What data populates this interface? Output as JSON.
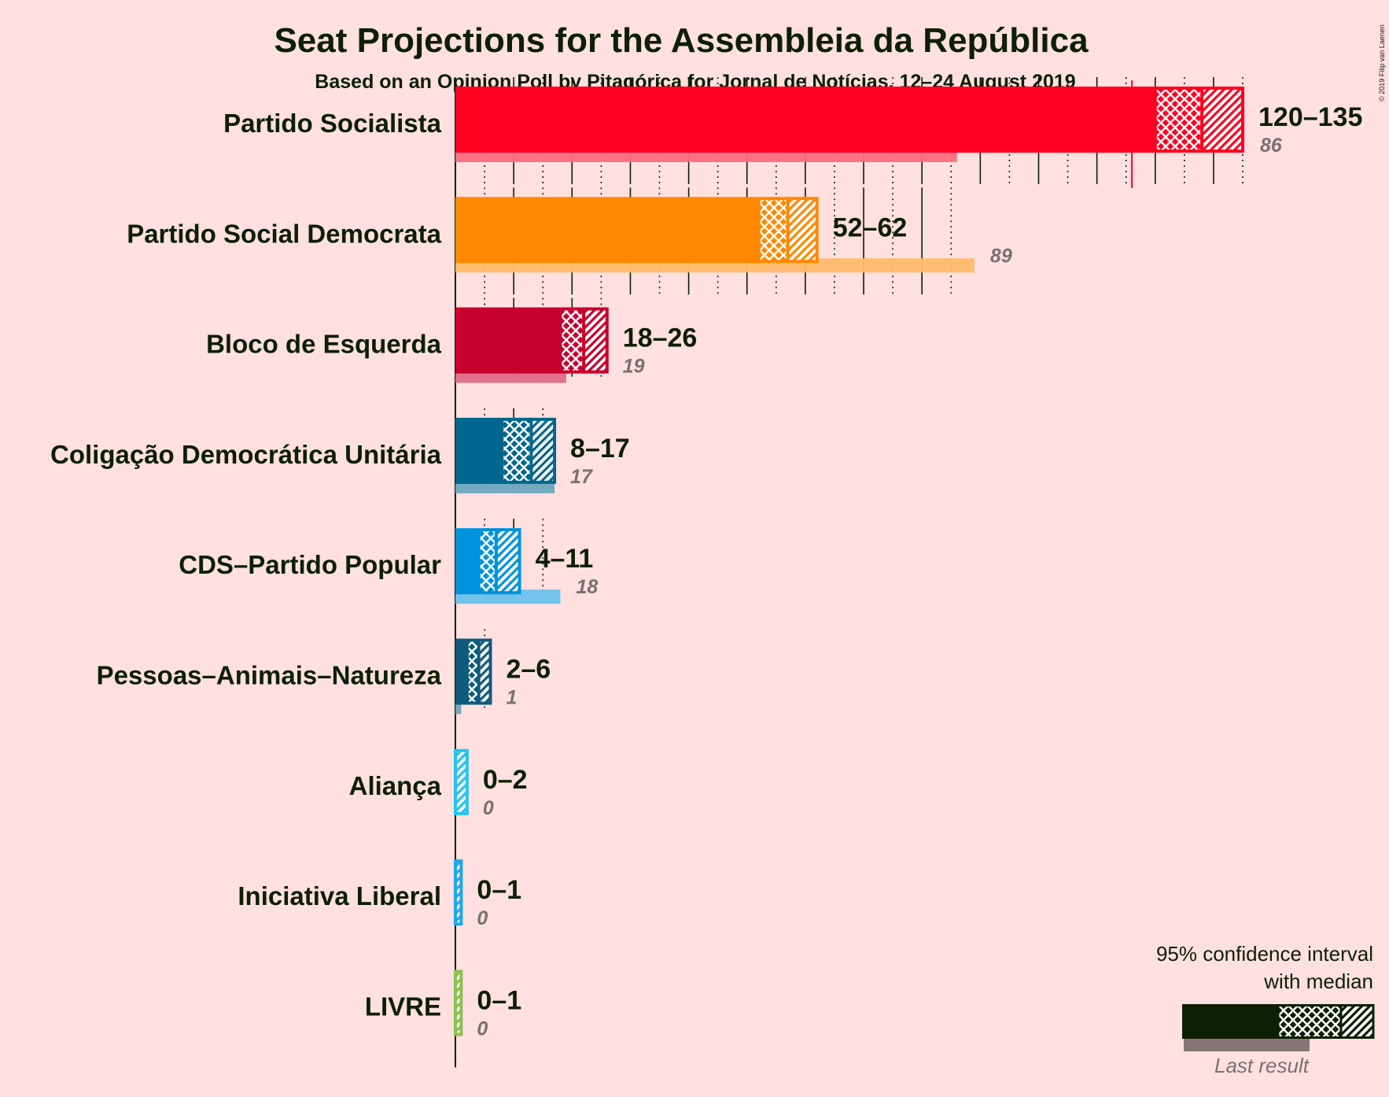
{
  "header": {
    "title": "Seat Projections for the Assembleia da República",
    "subtitle": "Based on an Opinion Poll by Pitagórica for Jornal de Notícias, 12–24 August 2019",
    "copyright": "© 2019 Filip van Laenen"
  },
  "legend": {
    "line1": "95% confidence interval",
    "line2": "with median",
    "last_result": "Last result"
  },
  "chart_data": {
    "type": "bar",
    "orientation": "horizontal",
    "majority_line": 116,
    "xlim": [
      0,
      135
    ],
    "grid": "vertical lines every 10 seats, dotted at odd multiples of 5",
    "series": [
      {
        "party": "Partido Socialista",
        "low": 120,
        "median": 128,
        "high": 135,
        "last": 86,
        "range_label": "120–135",
        "last_label": "86",
        "color": "#ff0020"
      },
      {
        "party": "Partido Social Democrata",
        "low": 52,
        "median": 57,
        "high": 62,
        "last": 89,
        "range_label": "52–62",
        "last_label": "89",
        "color": "#ff8800"
      },
      {
        "party": "Bloco de Esquerda",
        "low": 18,
        "median": 22,
        "high": 26,
        "last": 19,
        "range_label": "18–26",
        "last_label": "19",
        "color": "#c8002e"
      },
      {
        "party": "Coligação Democrática Unitária",
        "low": 8,
        "median": 13,
        "high": 17,
        "last": 17,
        "range_label": "8–17",
        "last_label": "17",
        "color": "#00678f"
      },
      {
        "party": "CDS–Partido Popular",
        "low": 4,
        "median": 7,
        "high": 11,
        "last": 18,
        "range_label": "4–11",
        "last_label": "18",
        "color": "#0093dd"
      },
      {
        "party": "Pessoas–Animais–Natureza",
        "low": 2,
        "median": 4,
        "high": 6,
        "last": 1,
        "range_label": "2–6",
        "last_label": "1",
        "color": "#0f5b7c"
      },
      {
        "party": "Aliança",
        "low": 0,
        "median": 0,
        "high": 2,
        "last": 0,
        "range_label": "0–2",
        "last_label": "0",
        "color": "#20c5f2"
      },
      {
        "party": "Iniciativa Liberal",
        "low": 0,
        "median": 0,
        "high": 1,
        "last": 0,
        "range_label": "0–1",
        "last_label": "0",
        "color": "#1ea9e8"
      },
      {
        "party": "LIVRE",
        "low": 0,
        "median": 0,
        "high": 1,
        "last": 0,
        "range_label": "0–1",
        "last_label": "0",
        "color": "#8dc050"
      }
    ]
  }
}
